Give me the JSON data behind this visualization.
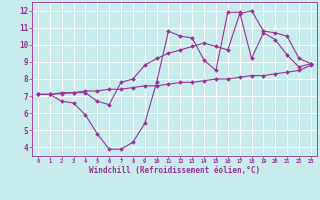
{
  "xlabel": "Windchill (Refroidissement éolien,°C)",
  "bg_color": "#c8ecec",
  "line_color": "#993399",
  "grid_color": "#ffffff",
  "xlim": [
    -0.5,
    23.5
  ],
  "ylim": [
    3.5,
    12.5
  ],
  "xticks": [
    0,
    1,
    2,
    3,
    4,
    5,
    6,
    7,
    8,
    9,
    10,
    11,
    12,
    13,
    14,
    15,
    16,
    17,
    18,
    19,
    20,
    21,
    22,
    23
  ],
  "yticks": [
    4,
    5,
    6,
    7,
    8,
    9,
    10,
    11,
    12
  ],
  "line1_x": [
    0,
    1,
    2,
    3,
    4,
    5,
    6,
    7,
    8,
    9,
    10,
    11,
    12,
    13,
    14,
    15,
    16,
    17,
    18,
    19,
    20,
    21,
    22,
    23
  ],
  "line1_y": [
    7.1,
    7.1,
    6.7,
    6.6,
    5.9,
    4.8,
    3.9,
    3.9,
    4.3,
    5.4,
    7.8,
    10.8,
    10.5,
    10.4,
    9.1,
    8.5,
    11.9,
    11.9,
    9.2,
    10.7,
    10.3,
    9.4,
    8.7,
    8.9
  ],
  "line2_x": [
    0,
    1,
    2,
    3,
    4,
    5,
    6,
    7,
    8,
    9,
    10,
    11,
    12,
    13,
    14,
    15,
    16,
    17,
    18,
    19,
    20,
    21,
    22,
    23
  ],
  "line2_y": [
    7.1,
    7.1,
    7.2,
    7.2,
    7.3,
    7.3,
    7.4,
    7.4,
    7.5,
    7.6,
    7.6,
    7.7,
    7.8,
    7.8,
    7.9,
    8.0,
    8.0,
    8.1,
    8.2,
    8.2,
    8.3,
    8.4,
    8.5,
    8.8
  ],
  "line3_x": [
    0,
    1,
    2,
    3,
    4,
    5,
    6,
    7,
    8,
    9,
    10,
    11,
    12,
    13,
    14,
    15,
    16,
    17,
    18,
    19,
    20,
    21,
    22,
    23
  ],
  "line3_y": [
    7.1,
    7.1,
    7.15,
    7.2,
    7.2,
    6.7,
    6.5,
    7.8,
    8.0,
    8.8,
    9.2,
    9.5,
    9.7,
    9.9,
    10.1,
    9.9,
    9.7,
    11.8,
    12.0,
    10.8,
    10.7,
    10.5,
    9.2,
    8.9
  ]
}
